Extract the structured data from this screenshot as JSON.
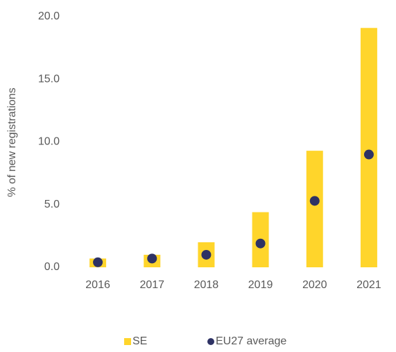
{
  "chart_data": {
    "type": "bar",
    "y_label": "% of new registrations",
    "categories": [
      "2016",
      "2017",
      "2018",
      "2019",
      "2020",
      "2021"
    ],
    "series": [
      {
        "name": "SE",
        "type": "bar",
        "color": "#ffd52b",
        "values": [
          0.7,
          1.0,
          2.0,
          4.4,
          9.3,
          19.1
        ]
      },
      {
        "name": "EU27 average",
        "type": "scatter",
        "color": "#2e3264",
        "values": [
          0.4,
          0.7,
          1.0,
          1.9,
          5.3,
          9.0
        ]
      }
    ],
    "ylim": [
      0,
      20
    ],
    "yticks": [
      {
        "value": 0,
        "label": "0.0"
      },
      {
        "value": 5,
        "label": "5.0"
      },
      {
        "value": 10,
        "label": "10.0"
      },
      {
        "value": 15,
        "label": "15.0"
      },
      {
        "value": 20,
        "label": "20.0"
      }
    ],
    "grid": false,
    "legend": "bottom"
  }
}
